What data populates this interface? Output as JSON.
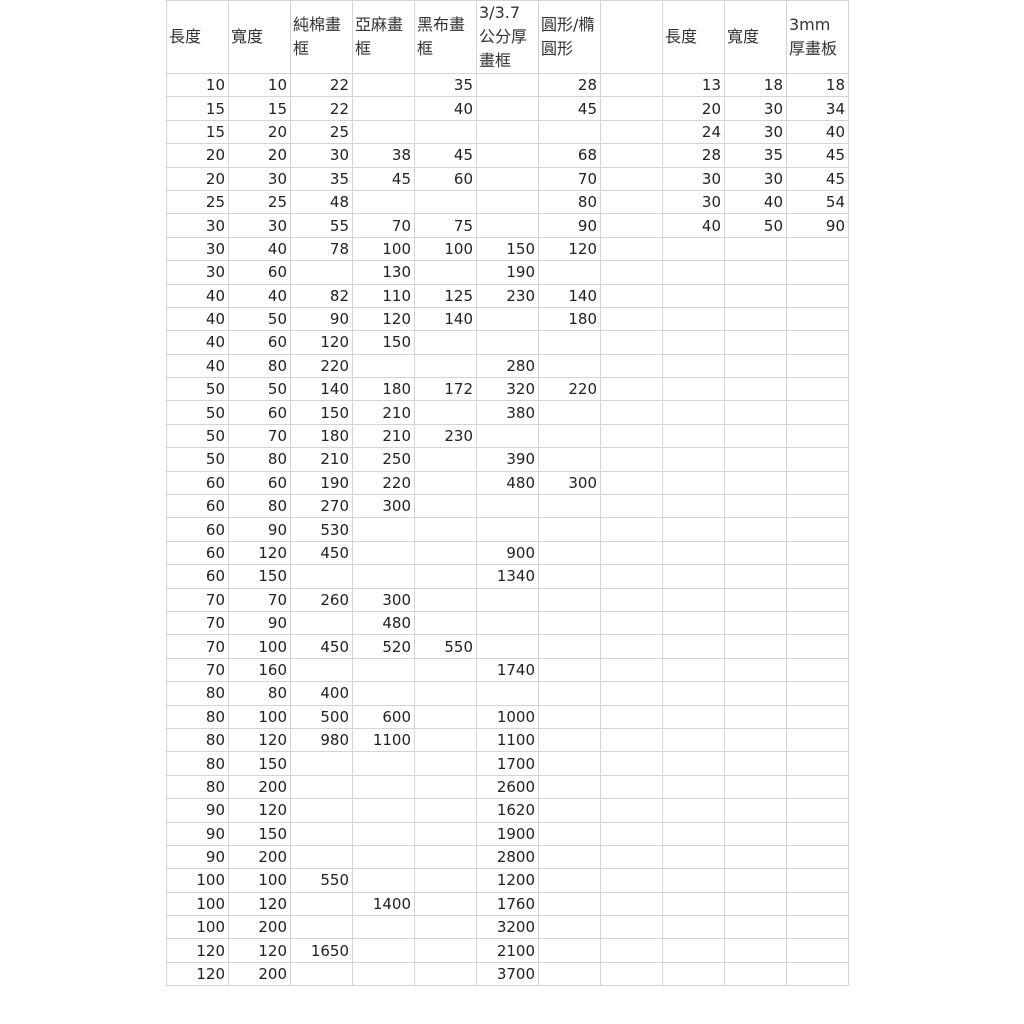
{
  "headers": [
    "長度",
    "寬度",
    "純棉畫框",
    "亞麻畫框",
    "黑布畫框",
    "3/3.7公分厚畫框",
    "圓形/橢圓形",
    "",
    "長度",
    "寬度",
    "3mm厚畫板"
  ],
  "rows": [
    [
      "10",
      "10",
      "22",
      "",
      "35",
      "",
      "28",
      "",
      "13",
      "18",
      "18"
    ],
    [
      "15",
      "15",
      "22",
      "",
      "40",
      "",
      "45",
      "",
      "20",
      "30",
      "34"
    ],
    [
      "15",
      "20",
      "25",
      "",
      "",
      "",
      "",
      "",
      "24",
      "30",
      "40"
    ],
    [
      "20",
      "20",
      "30",
      "38",
      "45",
      "",
      "68",
      "",
      "28",
      "35",
      "45"
    ],
    [
      "20",
      "30",
      "35",
      "45",
      "60",
      "",
      "70",
      "",
      "30",
      "30",
      "45"
    ],
    [
      "25",
      "25",
      "48",
      "",
      "",
      "",
      "80",
      "",
      "30",
      "40",
      "54"
    ],
    [
      "30",
      "30",
      "55",
      "70",
      "75",
      "",
      "90",
      "",
      "40",
      "50",
      "90"
    ],
    [
      "30",
      "40",
      "78",
      "100",
      "100",
      "150",
      "120",
      "",
      "",
      "",
      ""
    ],
    [
      "30",
      "60",
      "",
      "130",
      "",
      "190",
      "",
      "",
      "",
      "",
      ""
    ],
    [
      "40",
      "40",
      "82",
      "110",
      "125",
      "230",
      "140",
      "",
      "",
      "",
      ""
    ],
    [
      "40",
      "50",
      "90",
      "120",
      "140",
      "",
      "180",
      "",
      "",
      "",
      ""
    ],
    [
      "40",
      "60",
      "120",
      "150",
      "",
      "",
      "",
      "",
      "",
      "",
      ""
    ],
    [
      "40",
      "80",
      "220",
      "",
      "",
      "280",
      "",
      "",
      "",
      "",
      ""
    ],
    [
      "50",
      "50",
      "140",
      "180",
      "172",
      "320",
      "220",
      "",
      "",
      "",
      ""
    ],
    [
      "50",
      "60",
      "150",
      "210",
      "",
      "380",
      "",
      "",
      "",
      "",
      ""
    ],
    [
      "50",
      "70",
      "180",
      "210",
      "230",
      "",
      "",
      "",
      "",
      "",
      ""
    ],
    [
      "50",
      "80",
      "210",
      "250",
      "",
      "390",
      "",
      "",
      "",
      "",
      ""
    ],
    [
      "60",
      "60",
      "190",
      "220",
      "",
      "480",
      "300",
      "",
      "",
      "",
      ""
    ],
    [
      "60",
      "80",
      "270",
      "300",
      "",
      "",
      "",
      "",
      "",
      "",
      ""
    ],
    [
      "60",
      "90",
      "530",
      "",
      "",
      "",
      "",
      "",
      "",
      "",
      ""
    ],
    [
      "60",
      "120",
      "450",
      "",
      "",
      "900",
      "",
      "",
      "",
      "",
      ""
    ],
    [
      "60",
      "150",
      "",
      "",
      "",
      "1340",
      "",
      "",
      "",
      "",
      ""
    ],
    [
      "70",
      "70",
      "260",
      "300",
      "",
      "",
      "",
      "",
      "",
      "",
      ""
    ],
    [
      "70",
      "90",
      "",
      "480",
      "",
      "",
      "",
      "",
      "",
      "",
      ""
    ],
    [
      "70",
      "100",
      "450",
      "520",
      "550",
      "",
      "",
      "",
      "",
      "",
      ""
    ],
    [
      "70",
      "160",
      "",
      "",
      "",
      "1740",
      "",
      "",
      "",
      "",
      ""
    ],
    [
      "80",
      "80",
      "400",
      "",
      "",
      "",
      "",
      "",
      "",
      "",
      ""
    ],
    [
      "80",
      "100",
      "500",
      "600",
      "",
      "1000",
      "",
      "",
      "",
      "",
      ""
    ],
    [
      "80",
      "120",
      "980",
      "1100",
      "",
      "1100",
      "",
      "",
      "",
      "",
      ""
    ],
    [
      "80",
      "150",
      "",
      "",
      "",
      "1700",
      "",
      "",
      "",
      "",
      ""
    ],
    [
      "80",
      "200",
      "",
      "",
      "",
      "2600",
      "",
      "",
      "",
      "",
      ""
    ],
    [
      "90",
      "120",
      "",
      "",
      "",
      "1620",
      "",
      "",
      "",
      "",
      ""
    ],
    [
      "90",
      "150",
      "",
      "",
      "",
      "1900",
      "",
      "",
      "",
      "",
      ""
    ],
    [
      "90",
      "200",
      "",
      "",
      "",
      "2800",
      "",
      "",
      "",
      "",
      ""
    ],
    [
      "100",
      "100",
      "550",
      "",
      "",
      "1200",
      "",
      "",
      "",
      "",
      ""
    ],
    [
      "100",
      "120",
      "",
      "1400",
      "",
      "1760",
      "",
      "",
      "",
      "",
      ""
    ],
    [
      "100",
      "200",
      "",
      "",
      "",
      "3200",
      "",
      "",
      "",
      "",
      ""
    ],
    [
      "120",
      "120",
      "1650",
      "",
      "",
      "2100",
      "",
      "",
      "",
      "",
      ""
    ],
    [
      "120",
      "200",
      "",
      "",
      "",
      "3700",
      "",
      "",
      "",
      "",
      ""
    ]
  ]
}
